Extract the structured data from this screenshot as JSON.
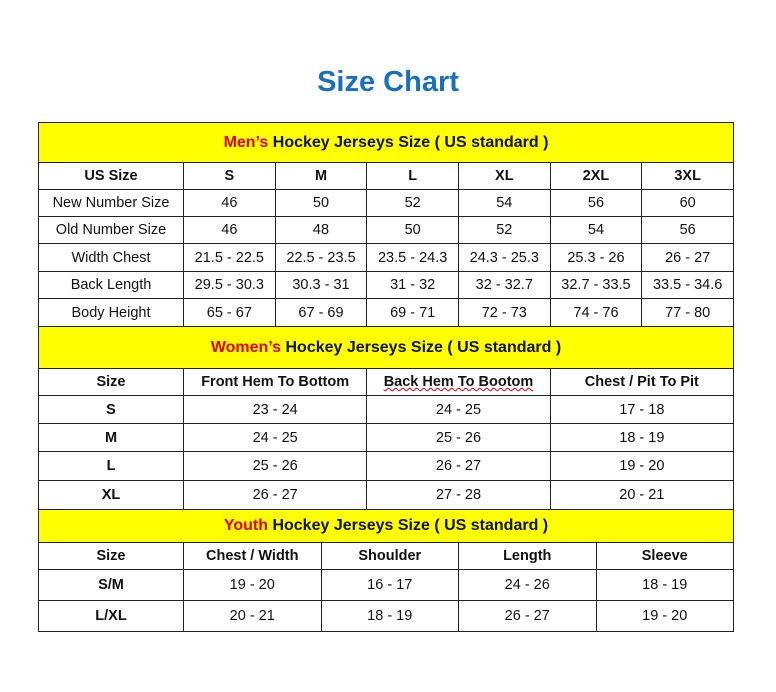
{
  "title": "Size Chart",
  "colors": {
    "title": "#1a70c0",
    "header_bg": "#ffff00",
    "highlight": "#e00000"
  },
  "men": {
    "header_highlight": "Men’s",
    "header_rest": " Hockey Jerseys Size ( US standard )",
    "columns": [
      "US Size",
      "S",
      "M",
      "L",
      "XL",
      "2XL",
      "3XL"
    ],
    "rows": [
      [
        "New Number Size",
        "46",
        "50",
        "52",
        "54",
        "56",
        "60"
      ],
      [
        "Old Number Size",
        "46",
        "48",
        "50",
        "52",
        "54",
        "56"
      ],
      [
        "Width Chest",
        "21.5 - 22.5",
        "22.5 - 23.5",
        "23.5 - 24.3",
        "24.3 - 25.3",
        "25.3 - 26",
        "26 - 27"
      ],
      [
        "Back Length",
        "29.5 - 30.3",
        "30.3 - 31",
        "31 - 32",
        "32 - 32.7",
        "32.7 - 33.5",
        "33.5 - 34.6"
      ],
      [
        "Body Height",
        "65 - 67",
        "67 - 69",
        "69 - 71",
        "72 - 73",
        "74 - 76",
        "77 - 80"
      ]
    ]
  },
  "women": {
    "header_highlight": "Women’s",
    "header_rest": " Hockey Jerseys Size ( US standard )",
    "columns": [
      "Size",
      "Front Hem To Bottom",
      "Back Hem To Bootom",
      "Chest / Pit To Pit"
    ],
    "rows": [
      [
        "S",
        "23 - 24",
        "24 - 25",
        "17 - 18"
      ],
      [
        "M",
        "24 - 25",
        "25 - 26",
        "18 - 19"
      ],
      [
        "L",
        "25 - 26",
        "26 - 27",
        "19 - 20"
      ],
      [
        "XL",
        "26 - 27",
        "27 - 28",
        "20 - 21"
      ]
    ]
  },
  "youth": {
    "header_highlight": "Youth",
    "header_rest": " Hockey Jerseys Size ( US standard )",
    "columns": [
      "Size",
      "Chest / Width",
      "Shoulder",
      "Length",
      "Sleeve"
    ],
    "rows": [
      [
        "S/M",
        "19 - 20",
        "16 - 17",
        "24 - 26",
        "18 - 19"
      ],
      [
        "L/XL",
        "20 - 21",
        "18 - 19",
        "26 - 27",
        "19 - 20"
      ]
    ]
  }
}
